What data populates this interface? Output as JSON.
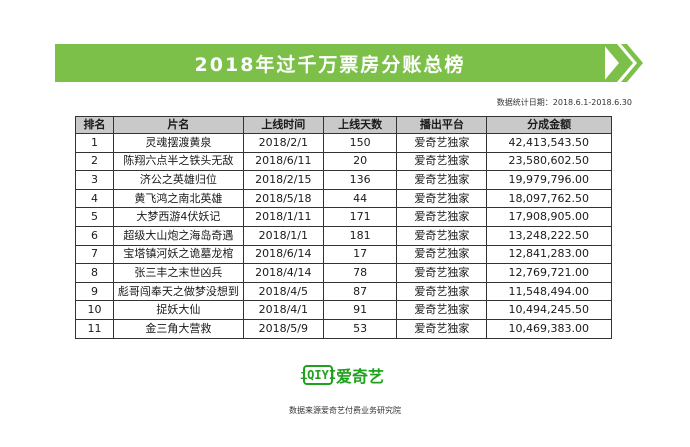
{
  "title": "2018年过千万票房分账总榜",
  "meta": "数据统计日期：2018.6.1-2018.6.30",
  "colors": {
    "banner": "#7cc04a",
    "header_bg": "#c9c9c9",
    "logo": "#20a11e"
  },
  "columns": [
    "排名",
    "片名",
    "上线时间",
    "上线天数",
    "播出平台",
    "分成金额"
  ],
  "rows": [
    [
      "1",
      "灵魂摆渡黄泉",
      "2018/2/1",
      "150",
      "爱奇艺独家",
      "42,413,543.50"
    ],
    [
      "2",
      "陈翔六点半之铁头无敌",
      "2018/6/11",
      "20",
      "爱奇艺独家",
      "23,580,602.50"
    ],
    [
      "3",
      "济公之英雄归位",
      "2018/2/15",
      "136",
      "爱奇艺独家",
      "19,979,796.00"
    ],
    [
      "4",
      "黄飞鸿之南北英雄",
      "2018/5/18",
      "44",
      "爱奇艺独家",
      "18,097,762.50"
    ],
    [
      "5",
      "大梦西游4伏妖记",
      "2018/1/11",
      "171",
      "爱奇艺独家",
      "17,908,905.00"
    ],
    [
      "6",
      "超级大山炮之海岛奇遇",
      "2018/1/1",
      "181",
      "爱奇艺独家",
      "13,248,222.50"
    ],
    [
      "7",
      "宝塔镇河妖之诡墓龙棺",
      "2018/6/14",
      "17",
      "爱奇艺独家",
      "12,841,283.00"
    ],
    [
      "8",
      "张三丰之末世凶兵",
      "2018/4/14",
      "78",
      "爱奇艺独家",
      "12,769,721.00"
    ],
    [
      "9",
      "彪哥闯奉天之做梦没想到",
      "2018/4/5",
      "87",
      "爱奇艺独家",
      "11,548,494.00"
    ],
    [
      "10",
      "捉妖大仙",
      "2018/4/1",
      "91",
      "爱奇艺独家",
      "10,494,245.50"
    ],
    [
      "11",
      "金三角大营救",
      "2018/5/9",
      "53",
      "爱奇艺独家",
      "10,469,383.00"
    ]
  ],
  "logo": {
    "mark": "iQIYI",
    "name": "爱奇艺"
  },
  "source": "数据来源爱奇艺付费业务研究院"
}
